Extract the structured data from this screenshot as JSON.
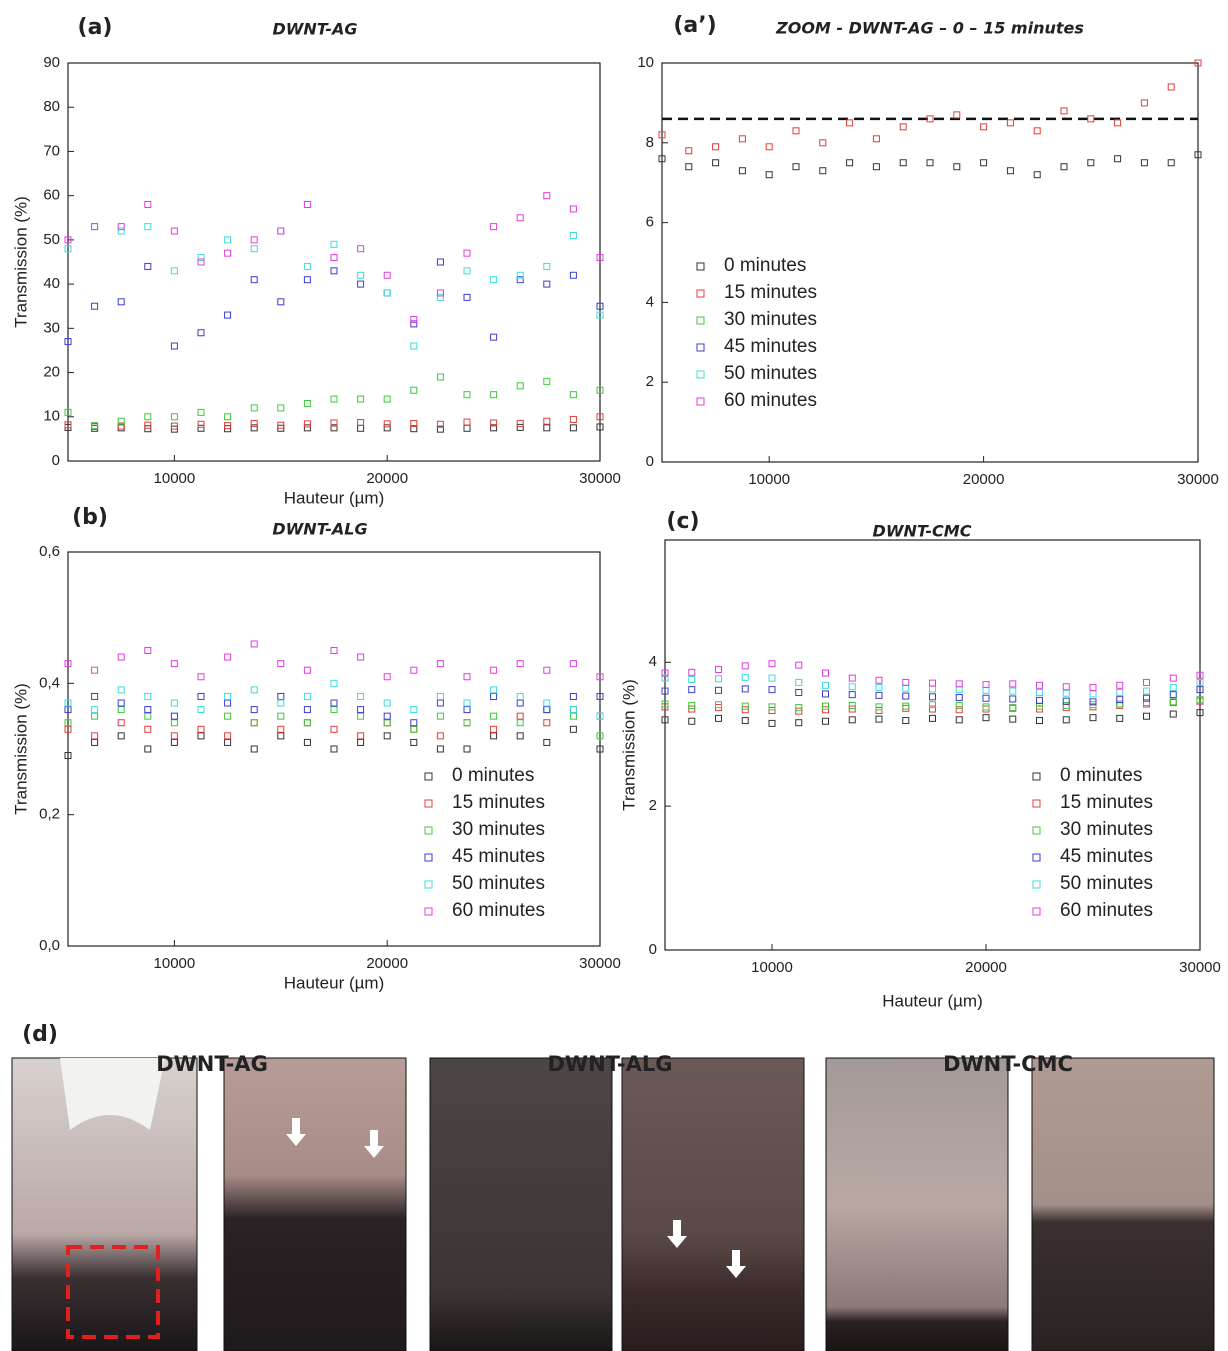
{
  "chart_data": [
    {
      "type": "scatter",
      "panel": "(a)",
      "title": "DWNT-AG",
      "xlabel": "Hauteur (µm)",
      "ylabel": "Transmission (%)",
      "x": [
        5000,
        6250,
        7500,
        8750,
        10000,
        11250,
        12500,
        13750,
        15000,
        16250,
        17500,
        18750,
        20000,
        21250,
        22500,
        23750,
        25000,
        26250,
        27500,
        28750,
        30000
      ],
      "xlim": [
        5000,
        30000
      ],
      "xticks": [
        10000,
        20000,
        30000
      ],
      "ylim": [
        0,
        90
      ],
      "yticks": [
        0,
        10,
        20,
        30,
        40,
        50,
        60,
        70,
        80,
        90
      ],
      "series": [
        {
          "name": "0 minutes",
          "color": "#333333",
          "values": [
            7.6,
            7.4,
            7.5,
            7.3,
            7.2,
            7.4,
            7.3,
            7.5,
            7.4,
            7.5,
            7.5,
            7.4,
            7.5,
            7.3,
            7.2,
            7.4,
            7.5,
            7.6,
            7.5,
            7.5,
            7.7
          ]
        },
        {
          "name": "15 minutes",
          "color": "#e03c3c",
          "values": [
            8.2,
            7.8,
            7.9,
            8.1,
            7.9,
            8.3,
            8.0,
            8.5,
            8.1,
            8.4,
            8.6,
            8.7,
            8.4,
            8.5,
            8.3,
            8.8,
            8.6,
            8.5,
            9.0,
            9.4,
            10.0
          ]
        },
        {
          "name": "30 minutes",
          "color": "#3cc83c",
          "values": [
            11,
            8,
            9,
            10,
            10,
            11,
            10,
            12,
            12,
            13,
            14,
            14,
            14,
            16,
            19,
            15,
            15,
            17,
            18,
            15,
            16
          ]
        },
        {
          "name": "45 minutes",
          "color": "#3c3cd0",
          "values": [
            27,
            35,
            36,
            44,
            26,
            29,
            33,
            41,
            36,
            41,
            43,
            40,
            38,
            31,
            45,
            37,
            28,
            41,
            40,
            42,
            35
          ]
        },
        {
          "name": "50 minutes",
          "color": "#3cdcdc",
          "values": [
            48,
            53,
            52,
            53,
            43,
            46,
            50,
            48,
            52,
            44,
            49,
            42,
            38,
            26,
            37,
            43,
            41,
            42,
            44,
            51,
            33
          ]
        },
        {
          "name": "60 minutes",
          "color": "#e03ce0",
          "values": [
            50,
            53,
            53,
            58,
            52,
            45,
            47,
            50,
            52,
            58,
            46,
            48,
            42,
            32,
            38,
            47,
            53,
            55,
            60,
            57,
            46
          ]
        }
      ]
    },
    {
      "type": "scatter",
      "panel": "(a’)",
      "title": "ZOOM - DWNT-AG – 0 – 15 minutes",
      "legend": true,
      "reference_line": 8.6,
      "x": [
        5000,
        6250,
        7500,
        8750,
        10000,
        11250,
        12500,
        13750,
        15000,
        16250,
        17500,
        18750,
        20000,
        21250,
        22500,
        23750,
        25000,
        26250,
        27500,
        28750,
        30000
      ],
      "xlim": [
        5000,
        30000
      ],
      "xticks": [
        10000,
        20000,
        30000
      ],
      "ylim": [
        0,
        10
      ],
      "yticks": [
        0,
        2,
        4,
        6,
        8,
        10
      ],
      "series": [
        {
          "name": "0 minutes",
          "color": "#333333",
          "values": [
            7.6,
            7.4,
            7.5,
            7.3,
            7.2,
            7.4,
            7.3,
            7.5,
            7.4,
            7.5,
            7.5,
            7.4,
            7.5,
            7.3,
            7.2,
            7.4,
            7.5,
            7.6,
            7.5,
            7.5,
            7.7
          ]
        },
        {
          "name": "15 minutes",
          "color": "#e03c3c",
          "values": [
            8.2,
            7.8,
            7.9,
            8.1,
            7.9,
            8.3,
            8.0,
            8.5,
            8.1,
            8.4,
            8.6,
            8.7,
            8.4,
            8.5,
            8.3,
            8.8,
            8.6,
            8.5,
            9.0,
            9.4,
            10.0
          ]
        },
        {
          "name": "30 minutes",
          "color": "#3cc83c",
          "values": [
            null,
            null,
            null,
            null,
            null,
            null,
            null,
            null,
            null,
            null,
            null,
            null,
            null,
            null,
            null,
            null,
            null,
            null,
            null,
            null,
            null
          ]
        },
        {
          "name": "45 minutes",
          "color": "#3c3cd0",
          "values": [
            null,
            null,
            null,
            null,
            null,
            null,
            null,
            null,
            null,
            null,
            null,
            null,
            null,
            null,
            null,
            null,
            null,
            null,
            null,
            null,
            null
          ]
        },
        {
          "name": "50 minutes",
          "color": "#3cdcdc",
          "values": [
            null,
            null,
            null,
            null,
            null,
            null,
            null,
            null,
            null,
            null,
            null,
            null,
            null,
            null,
            null,
            null,
            null,
            null,
            null,
            null,
            null
          ]
        },
        {
          "name": "60 minutes",
          "color": "#e03ce0",
          "values": [
            null,
            null,
            null,
            null,
            null,
            null,
            null,
            null,
            null,
            null,
            null,
            null,
            null,
            null,
            null,
            null,
            null,
            null,
            null,
            null,
            null
          ]
        }
      ]
    },
    {
      "type": "scatter",
      "panel": "(b)",
      "title": "DWNT-ALG",
      "xlabel": "Hauteur (µm)",
      "ylabel": "Transmission (%)",
      "legend": true,
      "x": [
        5000,
        6250,
        7500,
        8750,
        10000,
        11250,
        12500,
        13750,
        15000,
        16250,
        17500,
        18750,
        20000,
        21250,
        22500,
        23750,
        25000,
        26250,
        27500,
        28750,
        30000
      ],
      "xlim": [
        5000,
        30000
      ],
      "xticks": [
        10000,
        20000,
        30000
      ],
      "ylim": [
        0,
        0.6
      ],
      "yticks": [
        {
          "value": 0,
          "label": "0,0"
        },
        {
          "value": 0.2,
          "label": "0,2"
        },
        {
          "value": 0.4,
          "label": "0,4"
        },
        {
          "value": 0.6,
          "label": "0,6"
        }
      ],
      "series": [
        {
          "name": "0 minutes",
          "color": "#333333",
          "values": [
            0.29,
            0.31,
            0.32,
            0.3,
            0.31,
            0.32,
            0.31,
            0.3,
            0.32,
            0.31,
            0.3,
            0.31,
            0.32,
            0.31,
            0.3,
            0.3,
            0.32,
            0.32,
            0.31,
            0.33,
            0.3
          ]
        },
        {
          "name": "15 minutes",
          "color": "#e03c3c",
          "values": [
            0.33,
            0.32,
            0.34,
            0.33,
            0.32,
            0.33,
            0.32,
            0.34,
            0.33,
            0.34,
            0.33,
            0.32,
            0.34,
            0.33,
            0.32,
            0.34,
            0.33,
            0.35,
            0.34,
            0.36,
            0.35
          ]
        },
        {
          "name": "30 minutes",
          "color": "#3cc83c",
          "values": [
            0.34,
            0.35,
            0.36,
            0.35,
            0.34,
            0.36,
            0.35,
            0.34,
            0.35,
            0.34,
            0.36,
            0.35,
            0.34,
            0.33,
            0.35,
            0.34,
            0.35,
            0.34,
            0.36,
            0.35,
            0.32
          ]
        },
        {
          "name": "45 minutes",
          "color": "#3c3cd0",
          "values": [
            0.36,
            0.38,
            0.37,
            0.36,
            0.35,
            0.38,
            0.37,
            0.36,
            0.38,
            0.36,
            0.37,
            0.36,
            0.35,
            0.34,
            0.37,
            0.36,
            0.38,
            0.37,
            0.36,
            0.38,
            0.38
          ]
        },
        {
          "name": "50 minutes",
          "color": "#3cdcdc",
          "values": [
            0.37,
            0.36,
            0.39,
            0.38,
            0.37,
            0.36,
            0.38,
            0.39,
            0.37,
            0.38,
            0.4,
            0.38,
            0.37,
            0.36,
            0.38,
            0.37,
            0.39,
            0.38,
            0.37,
            0.36,
            0.35
          ]
        },
        {
          "name": "60 minutes",
          "color": "#e03ce0",
          "values": [
            0.43,
            0.42,
            0.44,
            0.45,
            0.43,
            0.41,
            0.44,
            0.46,
            0.43,
            0.42,
            0.45,
            0.44,
            0.41,
            0.42,
            0.43,
            0.41,
            0.42,
            0.43,
            0.42,
            0.43,
            0.41
          ]
        }
      ]
    },
    {
      "type": "scatter",
      "panel": "(c)",
      "title": "DWNT-CMC",
      "xlabel": "Hauteur (µm)",
      "ylabel": "Transmission (%)",
      "legend": true,
      "x": [
        5000,
        6250,
        7500,
        8750,
        10000,
        11250,
        12500,
        13750,
        15000,
        16250,
        17500,
        18750,
        20000,
        21250,
        22500,
        23750,
        25000,
        26250,
        27500,
        28750,
        30000
      ],
      "xlim": [
        5000,
        30000
      ],
      "xticks": [
        10000,
        20000,
        30000
      ],
      "ylim": [
        0,
        5.7
      ],
      "yticks": [
        0,
        2,
        4
      ],
      "series": [
        {
          "name": "0 minutes",
          "color": "#333333",
          "values": [
            3.2,
            3.18,
            3.22,
            3.19,
            3.15,
            3.16,
            3.18,
            3.2,
            3.21,
            3.19,
            3.22,
            3.2,
            3.23,
            3.21,
            3.19,
            3.2,
            3.23,
            3.22,
            3.25,
            3.28,
            3.3
          ]
        },
        {
          "name": "15 minutes",
          "color": "#e03c3c",
          "values": [
            3.38,
            3.35,
            3.37,
            3.34,
            3.33,
            3.32,
            3.34,
            3.35,
            3.33,
            3.36,
            3.35,
            3.34,
            3.35,
            3.36,
            3.35,
            3.37,
            3.38,
            3.4,
            3.42,
            3.44,
            3.46
          ]
        },
        {
          "name": "30 minutes",
          "color": "#3cc83c",
          "values": [
            3.42,
            3.4,
            3.41,
            3.39,
            3.38,
            3.37,
            3.39,
            3.4,
            3.38,
            3.39,
            3.41,
            3.4,
            3.38,
            3.37,
            3.39,
            3.4,
            3.41,
            3.42,
            3.44,
            3.45,
            3.48
          ]
        },
        {
          "name": "45 minutes",
          "color": "#3c3cd0",
          "values": [
            3.6,
            3.62,
            3.61,
            3.63,
            3.62,
            3.58,
            3.56,
            3.55,
            3.54,
            3.53,
            3.52,
            3.51,
            3.5,
            3.49,
            3.47,
            3.46,
            3.45,
            3.48,
            3.5,
            3.55,
            3.62
          ]
        },
        {
          "name": "50 minutes",
          "color": "#3cdcdc",
          "values": [
            3.78,
            3.76,
            3.77,
            3.79,
            3.78,
            3.72,
            3.68,
            3.66,
            3.65,
            3.64,
            3.63,
            3.62,
            3.61,
            3.6,
            3.58,
            3.57,
            3.56,
            3.58,
            3.6,
            3.65,
            3.72
          ]
        },
        {
          "name": "60 minutes",
          "color": "#e03ce0",
          "values": [
            3.85,
            3.86,
            3.9,
            3.95,
            3.98,
            3.96,
            3.85,
            3.78,
            3.75,
            3.72,
            3.71,
            3.7,
            3.69,
            3.7,
            3.68,
            3.66,
            3.65,
            3.68,
            3.72,
            3.78,
            3.82
          ]
        }
      ]
    }
  ],
  "photos": {
    "panel": "(d)",
    "titles": [
      "DWNT-AG",
      "DWNT-ALG",
      "DWNT-CMC"
    ]
  }
}
